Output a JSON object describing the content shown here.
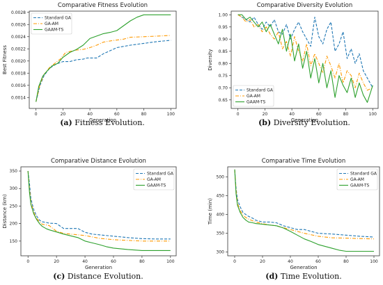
{
  "chart_data": [
    {
      "type": "line",
      "title": "Comparative Fitness Evolution",
      "xlabel": "Generation",
      "ylabel": "Best Fitness",
      "xlim": [
        -5,
        104
      ],
      "ylim": [
        0.00122,
        0.00282
      ],
      "xticks": [
        0,
        20,
        40,
        60,
        80,
        100
      ],
      "yticks": [
        0.0014,
        0.0016,
        0.0018,
        0.002,
        0.0022,
        0.0024,
        0.0026,
        0.0028
      ],
      "ytick_labels": [
        "0.0014",
        "0.0016",
        "0.0018",
        "0.0020",
        "0.0022",
        "0.0024",
        "0.0026",
        "0.0028"
      ],
      "legend_position": "top-left",
      "caption_label": "(a)",
      "caption_text": "Fitness Evolution.",
      "series": [
        {
          "name": "Standard GA",
          "color": "#1f77b4",
          "style": "dashed",
          "x": [
            0,
            3,
            6,
            10,
            15,
            20,
            25,
            30,
            35,
            38,
            45,
            50,
            60,
            70,
            80,
            90,
            100
          ],
          "y": [
            0.00133,
            0.0016,
            0.00176,
            0.00188,
            0.00195,
            0.00199,
            0.00199,
            0.00202,
            0.00203,
            0.00205,
            0.00205,
            0.00212,
            0.00222,
            0.00226,
            0.00229,
            0.00232,
            0.00234
          ]
        },
        {
          "name": "GA-AM",
          "color": "#ff9900",
          "style": "dashdot",
          "x": [
            0,
            3,
            6,
            10,
            15,
            18,
            22,
            30,
            35,
            40,
            45,
            50,
            55,
            65,
            70,
            80,
            90,
            100
          ],
          "y": [
            0.00133,
            0.00162,
            0.00178,
            0.00189,
            0.00198,
            0.00203,
            0.00214,
            0.00218,
            0.00219,
            0.00222,
            0.00226,
            0.00231,
            0.00233,
            0.00236,
            0.00239,
            0.0024,
            0.00241,
            0.00242
          ]
        },
        {
          "name": "GAAM-TS",
          "color": "#2ca02c",
          "style": "solid",
          "x": [
            0,
            2,
            5,
            8,
            12,
            16,
            20,
            25,
            30,
            35,
            40,
            45,
            50,
            55,
            60,
            65,
            70,
            75,
            80,
            90,
            100
          ],
          "y": [
            0.00133,
            0.00158,
            0.00175,
            0.00183,
            0.00192,
            0.00196,
            0.00206,
            0.00214,
            0.00219,
            0.00226,
            0.00237,
            0.00241,
            0.00245,
            0.00247,
            0.0025,
            0.00258,
            0.00266,
            0.00272,
            0.00276,
            0.00276,
            0.00276
          ]
        }
      ]
    },
    {
      "type": "line",
      "title": "Comparative Diversity Evolution",
      "xlabel": "Generation",
      "ylabel": "Diversity",
      "xlim": [
        -5,
        104
      ],
      "ylim": [
        0.615,
        1.015
      ],
      "xticks": [
        0,
        20,
        40,
        60,
        80,
        100
      ],
      "yticks": [
        0.65,
        0.7,
        0.75,
        0.8,
        0.85,
        0.9,
        0.95,
        1.0
      ],
      "ytick_labels": [
        "0.65",
        "0.70",
        "0.75",
        "0.80",
        "0.85",
        "0.90",
        "0.95",
        "1.00"
      ],
      "legend_position": "lower-left",
      "caption_label": "(b)",
      "caption_text": "Diversity Evolution.",
      "series": [
        {
          "name": "Standard GA",
          "color": "#1f77b4",
          "style": "dashed",
          "x": [
            0,
            3,
            6,
            9,
            12,
            15,
            18,
            21,
            24,
            27,
            30,
            33,
            36,
            39,
            42,
            45,
            48,
            51,
            54,
            57,
            60,
            63,
            66,
            69,
            72,
            75,
            78,
            81,
            84,
            87,
            90,
            93,
            96,
            100
          ],
          "y": [
            1.0,
            0.99,
            0.98,
            0.97,
            0.99,
            0.96,
            0.94,
            0.97,
            0.95,
            0.98,
            0.93,
            0.92,
            0.96,
            0.9,
            0.94,
            0.97,
            0.93,
            0.9,
            0.87,
            0.99,
            0.91,
            0.88,
            0.94,
            0.97,
            0.85,
            0.88,
            0.93,
            0.82,
            0.86,
            0.8,
            0.84,
            0.77,
            0.74,
            0.7
          ]
        },
        {
          "name": "GA-AM",
          "color": "#ff9900",
          "style": "dashdot",
          "x": [
            0,
            3,
            6,
            9,
            12,
            15,
            18,
            21,
            24,
            27,
            30,
            33,
            36,
            39,
            42,
            45,
            48,
            51,
            54,
            57,
            60,
            63,
            66,
            69,
            72,
            75,
            78,
            81,
            84,
            87,
            90,
            93,
            96,
            100
          ],
          "y": [
            1.0,
            0.99,
            0.97,
            0.98,
            0.95,
            0.96,
            0.93,
            0.95,
            0.92,
            0.9,
            0.93,
            0.86,
            0.89,
            0.83,
            0.91,
            0.85,
            0.81,
            0.88,
            0.79,
            0.84,
            0.8,
            0.76,
            0.83,
            0.79,
            0.74,
            0.8,
            0.72,
            0.77,
            0.75,
            0.7,
            0.76,
            0.72,
            0.69,
            0.7
          ]
        },
        {
          "name": "GAAM-TS",
          "color": "#2ca02c",
          "style": "solid",
          "x": [
            0,
            3,
            6,
            9,
            12,
            15,
            18,
            21,
            24,
            27,
            30,
            33,
            36,
            39,
            42,
            45,
            48,
            51,
            54,
            57,
            60,
            63,
            66,
            69,
            72,
            75,
            78,
            81,
            84,
            87,
            90,
            93,
            96,
            100
          ],
          "y": [
            1.0,
            1.0,
            0.98,
            0.99,
            0.97,
            0.95,
            0.97,
            0.93,
            0.96,
            0.92,
            0.88,
            0.94,
            0.85,
            0.92,
            0.81,
            0.88,
            0.78,
            0.85,
            0.74,
            0.82,
            0.72,
            0.8,
            0.7,
            0.77,
            0.66,
            0.75,
            0.71,
            0.68,
            0.74,
            0.66,
            0.72,
            0.67,
            0.64,
            0.71
          ]
        }
      ]
    },
    {
      "type": "line",
      "title": "Comparative Distance Evolution",
      "xlabel": "Generation",
      "ylabel": "Distance (km)",
      "xlim": [
        -5,
        104
      ],
      "ylim": [
        108,
        362
      ],
      "xticks": [
        0,
        20,
        40,
        60,
        80,
        100
      ],
      "yticks": [
        150,
        200,
        250,
        300,
        350
      ],
      "ytick_labels": [
        "150",
        "200",
        "250",
        "300",
        "350"
      ],
      "legend_position": "top-right",
      "caption_label": "(c)",
      "caption_text": "Distance Evolution.",
      "series": [
        {
          "name": "Standard GA",
          "color": "#1f77b4",
          "style": "dashed",
          "x": [
            0,
            1,
            2,
            4,
            6,
            8,
            10,
            13,
            15,
            20,
            25,
            30,
            35,
            40,
            45,
            50,
            60,
            70,
            80,
            90,
            100
          ],
          "y": [
            350,
            315,
            272,
            240,
            222,
            210,
            205,
            203,
            201,
            200,
            186,
            186,
            186,
            175,
            170,
            168,
            164,
            160,
            157,
            156,
            156
          ]
        },
        {
          "name": "GA-AM",
          "color": "#ff9900",
          "style": "dashdot",
          "x": [
            0,
            1,
            2,
            4,
            6,
            8,
            10,
            13,
            15,
            20,
            25,
            30,
            35,
            40,
            45,
            50,
            60,
            70,
            80,
            90,
            100
          ],
          "y": [
            350,
            300,
            262,
            232,
            215,
            205,
            198,
            196,
            194,
            178,
            172,
            170,
            168,
            166,
            162,
            158,
            154,
            152,
            150,
            150,
            150
          ]
        },
        {
          "name": "GAAM-TS",
          "color": "#2ca02c",
          "style": "solid",
          "x": [
            0,
            1,
            2,
            4,
            6,
            8,
            10,
            13,
            15,
            20,
            25,
            30,
            35,
            40,
            45,
            50,
            55,
            60,
            70,
            80,
            90,
            100
          ],
          "y": [
            350,
            290,
            255,
            228,
            212,
            200,
            192,
            185,
            182,
            176,
            170,
            165,
            160,
            150,
            145,
            140,
            134,
            130,
            126,
            123,
            123,
            123
          ]
        }
      ]
    },
    {
      "type": "line",
      "title": "Comparative Time Evolution",
      "xlabel": "Generation",
      "ylabel": "Time (min)",
      "xlim": [
        -5,
        104
      ],
      "ylim": [
        290,
        527
      ],
      "xticks": [
        0,
        20,
        40,
        60,
        80,
        100
      ],
      "yticks": [
        300,
        350,
        400,
        450,
        500
      ],
      "ytick_labels": [
        "300",
        "350",
        "400",
        "450",
        "500"
      ],
      "legend_position": "top-right",
      "caption_label": "(d)",
      "caption_text": "Time Evolution.",
      "series": [
        {
          "name": "Standard GA",
          "color": "#1f77b4",
          "style": "dashed",
          "x": [
            0,
            1,
            2,
            4,
            6,
            8,
            10,
            13,
            15,
            20,
            25,
            30,
            35,
            40,
            45,
            50,
            60,
            70,
            80,
            90,
            100
          ],
          "y": [
            520,
            470,
            440,
            420,
            405,
            400,
            395,
            390,
            385,
            380,
            380,
            378,
            370,
            365,
            360,
            360,
            350,
            348,
            345,
            342,
            340
          ]
        },
        {
          "name": "GA-AM",
          "color": "#ff9900",
          "style": "dashdot",
          "x": [
            0,
            1,
            2,
            4,
            6,
            8,
            10,
            13,
            15,
            20,
            25,
            30,
            35,
            40,
            45,
            50,
            60,
            70,
            80,
            90,
            100
          ],
          "y": [
            520,
            465,
            430,
            410,
            398,
            392,
            388,
            383,
            380,
            376,
            372,
            370,
            365,
            360,
            355,
            350,
            342,
            338,
            337,
            336,
            335
          ]
        },
        {
          "name": "GAAM-TS",
          "color": "#2ca02c",
          "style": "solid",
          "x": [
            0,
            1,
            2,
            4,
            6,
            8,
            10,
            13,
            15,
            20,
            25,
            30,
            35,
            40,
            45,
            50,
            55,
            60,
            70,
            75,
            80,
            90,
            100
          ],
          "y": [
            520,
            455,
            425,
            405,
            392,
            385,
            380,
            378,
            376,
            374,
            372,
            370,
            364,
            355,
            345,
            335,
            328,
            320,
            310,
            305,
            302,
            302,
            302
          ]
        }
      ]
    }
  ]
}
